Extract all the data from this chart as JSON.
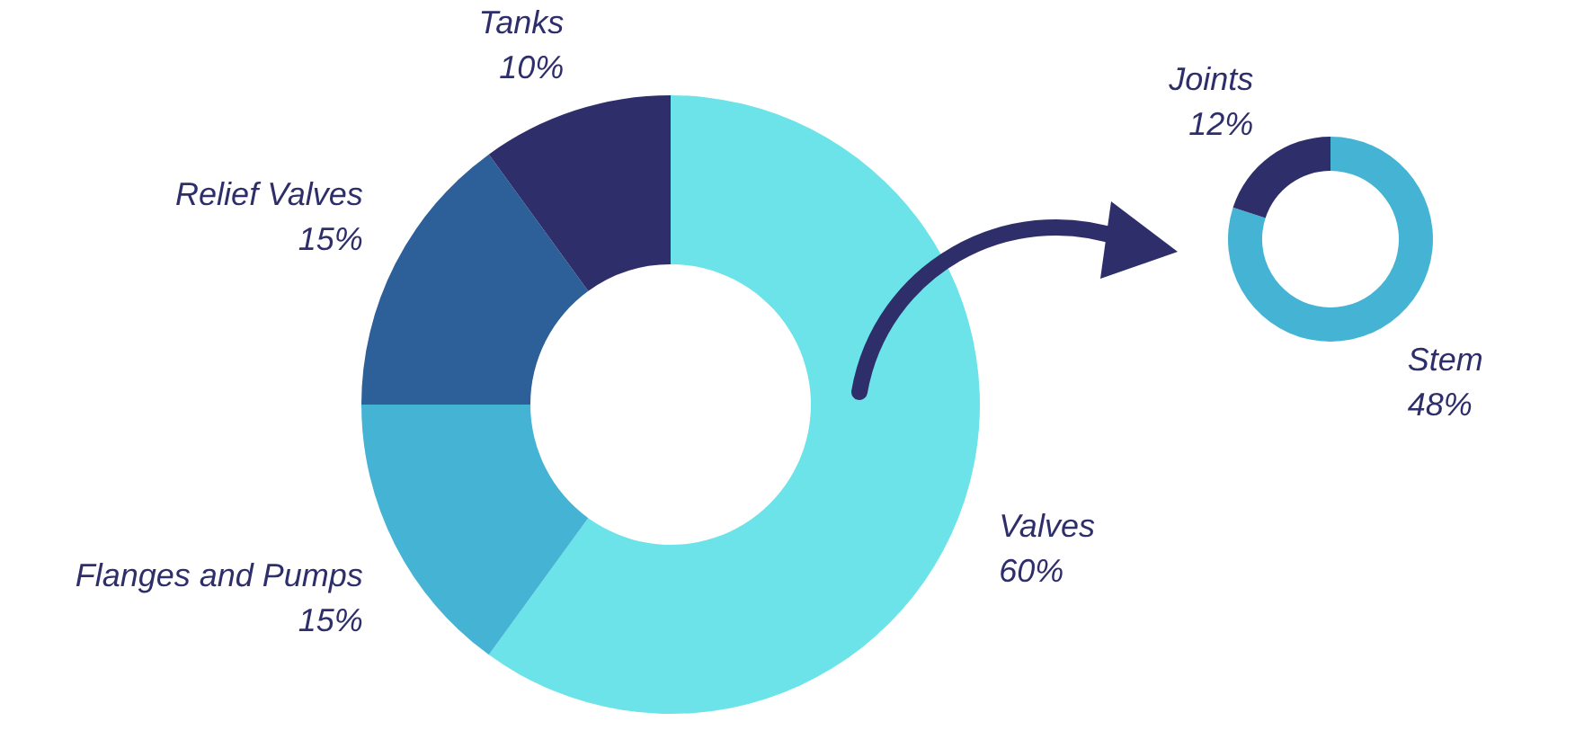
{
  "chart_data": [
    {
      "type": "donut",
      "categories": [
        "Valves",
        "Flanges and Pumps",
        "Relief Valves",
        "Tanks"
      ],
      "values": [
        60,
        15,
        15,
        10
      ],
      "colors": [
        "#6be3e8",
        "#45b4d4",
        "#2d5f98",
        "#2e2f6a"
      ],
      "value_labels": [
        "60%",
        "15%",
        "15%",
        "10%"
      ]
    },
    {
      "type": "donut",
      "categories": [
        "Stem",
        "Joints"
      ],
      "values": [
        48,
        12
      ],
      "colors": [
        "#45b4d4",
        "#2e2f6a"
      ],
      "value_labels": [
        "48%",
        "12%"
      ]
    }
  ]
}
